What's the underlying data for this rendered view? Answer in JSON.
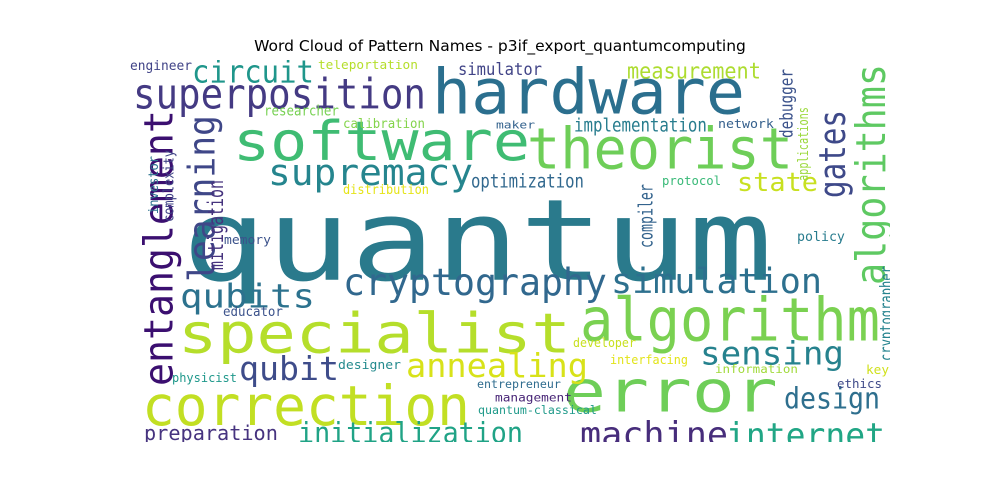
{
  "title": "Word Cloud of Pattern Names - p3if_export_quantumcomputing",
  "chart_data": {
    "type": "wordcloud",
    "title": "Word Cloud of Pattern Names - p3if_export_quantumcomputing",
    "words": [
      {
        "text": "quantum",
        "color": "#2a7a8c"
      },
      {
        "text": "hardware",
        "color": "#2b6f8e"
      },
      {
        "text": "software",
        "color": "#3fbc73"
      },
      {
        "text": "theorist",
        "color": "#6ece58"
      },
      {
        "text": "specialist",
        "color": "#b5de2b"
      },
      {
        "text": "algorithm",
        "color": "#7ad151"
      },
      {
        "text": "error",
        "color": "#6ece58"
      },
      {
        "text": "correction",
        "color": "#c2df23"
      },
      {
        "text": "superposition",
        "color": "#443a83"
      },
      {
        "text": "entanglement",
        "color": "#3b0f70"
      },
      {
        "text": "cryptography",
        "color": "#31688e"
      },
      {
        "text": "simulation",
        "color": "#2d708e"
      },
      {
        "text": "algorithms",
        "color": "#5ec962"
      },
      {
        "text": "supremacy",
        "color": "#25858e"
      },
      {
        "text": "gates",
        "color": "#3e4989"
      },
      {
        "text": "qubits",
        "color": "#2c728e"
      },
      {
        "text": "machine",
        "color": "#472d7b"
      },
      {
        "text": "internet",
        "color": "#21a685"
      },
      {
        "text": "sensing",
        "color": "#26828e"
      },
      {
        "text": "annealing",
        "color": "#d8e219"
      },
      {
        "text": "qubit",
        "color": "#3e4c8a"
      },
      {
        "text": "learning",
        "color": "#3f4788"
      },
      {
        "text": "circuit",
        "color": "#1f968b"
      },
      {
        "text": "initialization",
        "color": "#20a386"
      },
      {
        "text": "design",
        "color": "#2e6f8e"
      },
      {
        "text": "state",
        "color": "#c8e020"
      },
      {
        "text": "preparation",
        "color": "#46337f"
      },
      {
        "text": "measurement",
        "color": "#addc30"
      },
      {
        "text": "mitigation",
        "color": "#46337e"
      },
      {
        "text": "simulator",
        "color": "#414487"
      },
      {
        "text": "implementation",
        "color": "#287d8e"
      },
      {
        "text": "optimization",
        "color": "#31688e"
      },
      {
        "text": "debugger",
        "color": "#3b528b"
      },
      {
        "text": "compiler",
        "color": "#33638d"
      },
      {
        "text": "teleportation",
        "color": "#b5de2b"
      },
      {
        "text": "engineer",
        "color": "#404387"
      },
      {
        "text": "researcher",
        "color": "#77d153"
      },
      {
        "text": "calibration",
        "color": "#84d44b"
      },
      {
        "text": "maker",
        "color": "#33628d"
      },
      {
        "text": "network",
        "color": "#35608d"
      },
      {
        "text": "applications",
        "color": "#9bd93c"
      },
      {
        "text": "investor",
        "color": "#2c738e"
      },
      {
        "text": "complexity",
        "color": "#414487"
      },
      {
        "text": "distribution",
        "color": "#e5e419"
      },
      {
        "text": "protocol",
        "color": "#38b977"
      },
      {
        "text": "memory",
        "color": "#3b528b"
      },
      {
        "text": "policy",
        "color": "#287c8e"
      },
      {
        "text": "educator",
        "color": "#3b528b"
      },
      {
        "text": "developer",
        "color": "#c8e020"
      },
      {
        "text": "interfacing",
        "color": "#e2e418"
      },
      {
        "text": "information",
        "color": "#a0da39"
      },
      {
        "text": "cryptographer",
        "color": "#25838e"
      },
      {
        "text": "physicist",
        "color": "#1f988b"
      },
      {
        "text": "designer",
        "color": "#238a8d"
      },
      {
        "text": "entrepreneur",
        "color": "#2f6c8e"
      },
      {
        "text": "management",
        "color": "#482576"
      },
      {
        "text": "quantum-classical",
        "color": "#1f9a8a"
      },
      {
        "text": "ethics",
        "color": "#3e4a89"
      },
      {
        "text": "key",
        "color": "#d0e11c"
      }
    ]
  }
}
